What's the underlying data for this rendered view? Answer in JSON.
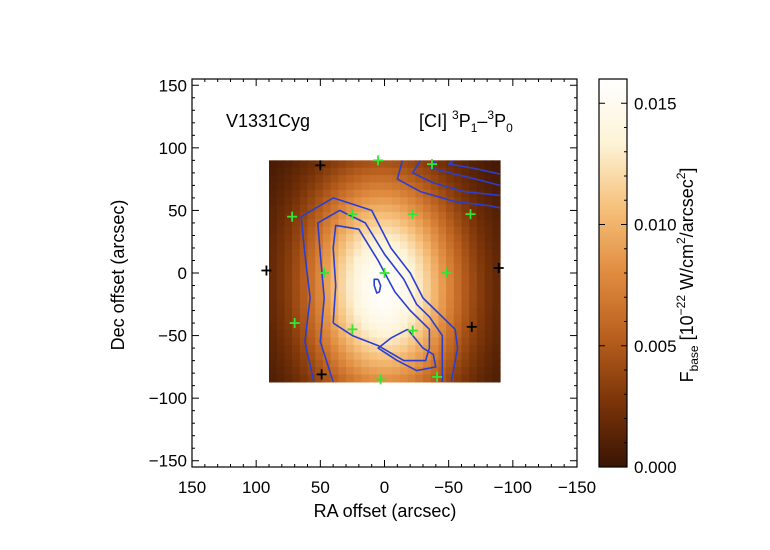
{
  "chart_data": {
    "type": "heatmap",
    "source_label": "V1331Cyg",
    "line_label": {
      "species": "[CI] ",
      "up_sup": "3",
      "up_term": "P",
      "up_sub": "1",
      "dash": "–",
      "low_sup": "3",
      "low_term": "P",
      "low_sub": "0"
    },
    "xlabel": "RA offset (arcsec)",
    "ylabel": "Dec offset (arcsec)",
    "xlim": [
      150,
      -150
    ],
    "ylim": [
      -155,
      155
    ],
    "xticks": [
      150,
      100,
      50,
      0,
      -50,
      -100,
      -150
    ],
    "xtick_labels": [
      "150",
      "100",
      "50",
      "0",
      "−50",
      "−100",
      "−150"
    ],
    "yticks": [
      150,
      100,
      50,
      0,
      -50,
      -100,
      -150
    ],
    "ytick_labels": [
      "150",
      "100",
      "50",
      "0",
      "−50",
      "−100",
      "−150"
    ],
    "map_extent": {
      "ra": [
        90,
        -90
      ],
      "dec": [
        -87,
        90
      ]
    },
    "map_peak": {
      "ra": 0,
      "dec": -15,
      "value": 0.0155
    },
    "colorbar": {
      "label": {
        "main": "F",
        "sub": "base",
        "bracket": " [10",
        "exp": "−22",
        "unit": " W/cm",
        "unit_exp": "2",
        "unit2": "/arcsec",
        "unit2_exp": "2",
        "close": "]"
      },
      "range": [
        0.0,
        0.016
      ],
      "ticks": [
        0.0,
        0.005,
        0.01,
        0.015
      ],
      "tick_labels": [
        "0.000",
        "0.005",
        "0.010",
        "0.015"
      ],
      "colormap": [
        "#3a1404",
        "#7a3408",
        "#b95f1e",
        "#e08c40",
        "#f6c07a",
        "#fdf3d6",
        "#ffffff"
      ]
    },
    "spaxels_active": [
      {
        "ra": 0,
        "dec": 0
      },
      {
        "ra": 47,
        "dec": 0
      },
      {
        "ra": -48,
        "dec": 0
      },
      {
        "ra": 25,
        "dec": 47
      },
      {
        "ra": -22,
        "dec": 47
      },
      {
        "ra": 25,
        "dec": -45
      },
      {
        "ra": -22,
        "dec": -46
      },
      {
        "ra": 72,
        "dec": 45
      },
      {
        "ra": -67,
        "dec": 47
      },
      {
        "ra": 70,
        "dec": -40
      },
      {
        "ra": 5,
        "dec": 90
      },
      {
        "ra": -37,
        "dec": 87
      },
      {
        "ra": 3,
        "dec": -85
      },
      {
        "ra": -41,
        "dec": -83
      }
    ],
    "spaxels_outer": [
      {
        "ra": 50,
        "dec": 86
      },
      {
        "ra": 92,
        "dec": 2
      },
      {
        "ra": -89,
        "dec": 4
      },
      {
        "ra": -68,
        "dec": -43
      },
      {
        "ra": 49,
        "dec": -81
      }
    ],
    "contours": [
      {
        "level": 1,
        "points": [
          [
            55,
            -87
          ],
          [
            62,
            -55
          ],
          [
            58,
            -20
          ],
          [
            62,
            15
          ],
          [
            65,
            45
          ],
          [
            40,
            60
          ],
          [
            10,
            50
          ],
          [
            -5,
            20
          ],
          [
            -20,
            0
          ],
          [
            -30,
            -20
          ],
          [
            -40,
            -30
          ],
          [
            -55,
            -45
          ],
          [
            -57,
            -60
          ],
          [
            -52,
            -87
          ]
        ]
      },
      {
        "level": 2,
        "points": [
          [
            40,
            -87
          ],
          [
            50,
            -55
          ],
          [
            47,
            -20
          ],
          [
            50,
            15
          ],
          [
            52,
            40
          ],
          [
            35,
            50
          ],
          [
            15,
            40
          ],
          [
            0,
            15
          ],
          [
            -15,
            -5
          ],
          [
            -25,
            -25
          ],
          [
            -35,
            -35
          ],
          [
            -45,
            -50
          ],
          [
            -45,
            -65
          ],
          [
            -45,
            -87
          ]
        ]
      },
      {
        "level": 3,
        "points": [
          [
            40,
            -40
          ],
          [
            38,
            -10
          ],
          [
            40,
            20
          ],
          [
            38,
            38
          ],
          [
            20,
            35
          ],
          [
            5,
            10
          ],
          [
            -8,
            -15
          ],
          [
            -20,
            -30
          ],
          [
            -35,
            -45
          ],
          [
            -35,
            -60
          ],
          [
            -32,
            -70
          ],
          [
            -15,
            -70
          ],
          [
            5,
            -58
          ],
          [
            25,
            -50
          ],
          [
            40,
            -40
          ]
        ]
      },
      {
        "level": 4,
        "points": [
          [
            -18,
            -45
          ],
          [
            -30,
            -60
          ],
          [
            -38,
            -65
          ],
          [
            -40,
            -75
          ],
          [
            -25,
            -78
          ],
          [
            -10,
            -70
          ],
          [
            5,
            -60
          ],
          [
            -5,
            -52
          ],
          [
            -18,
            -45
          ]
        ]
      },
      {
        "level": 5,
        "points": [
          [
            5,
            -5
          ],
          [
            3,
            -10
          ],
          [
            4,
            -15
          ],
          [
            6,
            -16
          ],
          [
            8,
            -10
          ],
          [
            8,
            -5
          ],
          [
            5,
            -5
          ]
        ]
      },
      {
        "level": 6,
        "points": [
          [
            -14,
            90
          ],
          [
            -10,
            75
          ],
          [
            -28,
            65
          ],
          [
            -55,
            57
          ],
          [
            -80,
            54
          ],
          [
            -90,
            52
          ]
        ]
      },
      {
        "level": 7,
        "points": [
          [
            -28,
            90
          ],
          [
            -22,
            80
          ],
          [
            -38,
            72
          ],
          [
            -62,
            65
          ],
          [
            -90,
            62
          ]
        ]
      },
      {
        "level": 8,
        "points": [
          [
            -40,
            90
          ],
          [
            -36,
            84
          ],
          [
            -55,
            79
          ],
          [
            -75,
            74
          ],
          [
            -90,
            70
          ]
        ]
      },
      {
        "level": 9,
        "points": [
          [
            -54,
            90
          ],
          [
            -50,
            87
          ],
          [
            -68,
            84
          ],
          [
            -90,
            79
          ]
        ]
      }
    ]
  }
}
